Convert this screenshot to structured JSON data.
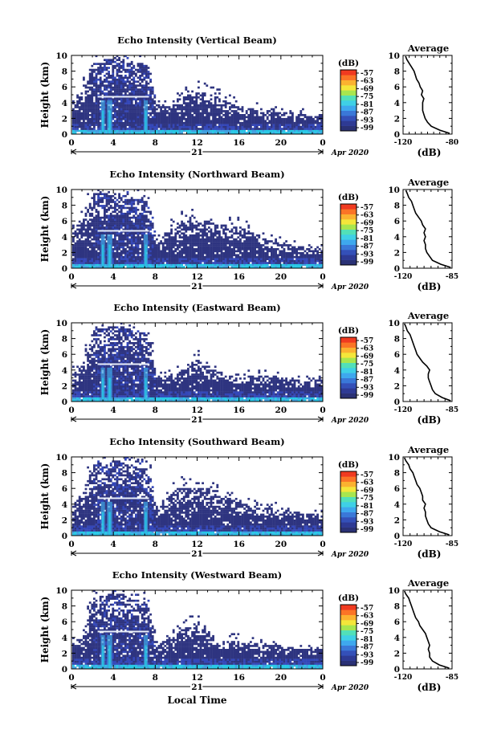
{
  "colors": {
    "background": "#ffffff",
    "echo_base": "#2e3480",
    "echo_mid": "#3346b8",
    "echo_strong": "#3fa0e0",
    "echo_surface": "#27c8e6",
    "profile_line": "#000000",
    "colorbar": [
      "#2a3175",
      "#2e3a94",
      "#3450b8",
      "#3a78d8",
      "#3ea8ee",
      "#3fd0e6",
      "#52e0b8",
      "#a8e64e",
      "#f4e63a",
      "#fbb230",
      "#fb7426",
      "#f03a20"
    ]
  },
  "labels": {
    "y_axis": "Height (km)",
    "x_axis": "Local Time",
    "colorbar_unit": "(dB)",
    "avg_title": "Average",
    "avg_unit": "(dB)",
    "date_day": "21",
    "date_month_year": "Apr 2020"
  },
  "chart_data": [
    {
      "type": "heatmap",
      "title": "Echo Intensity (Vertical Beam)",
      "xlabel": "",
      "ylabel": "Height (km)",
      "xlim": [
        0,
        24
      ],
      "ylim": [
        0,
        10
      ],
      "xticks": [
        "0",
        "4",
        "8",
        "12",
        "16",
        "20",
        "0"
      ],
      "yticks": [
        "0",
        "2",
        "4",
        "6",
        "8",
        "10"
      ],
      "colorbar": {
        "label": "(dB)",
        "ticks": [
          "-57",
          "-63",
          "-69",
          "-75",
          "-81",
          "-87",
          "-93",
          "-99"
        ]
      },
      "echo_tops_km": [
        [
          0.2,
          4.2
        ],
        [
          1.0,
          5.5
        ],
        [
          2.0,
          9.2
        ],
        [
          3.0,
          9.4
        ],
        [
          4.0,
          9.5
        ],
        [
          5.0,
          9.4
        ],
        [
          6.0,
          9.0
        ],
        [
          7.0,
          8.8
        ],
        [
          7.5,
          7.5
        ],
        [
          8.0,
          3.2
        ],
        [
          10.0,
          4.3
        ],
        [
          12.0,
          5.3
        ],
        [
          14.0,
          4.5
        ],
        [
          16.0,
          3.4
        ],
        [
          18.0,
          3.0
        ],
        [
          20.0,
          2.7
        ],
        [
          22.0,
          2.5
        ],
        [
          23.9,
          2.4
        ]
      ],
      "average_profile": {
        "title": "Average",
        "xlabel": "(dB)",
        "xlim": [
          -120,
          -80
        ],
        "xticks": [
          "-120",
          "-80"
        ],
        "ylim": [
          0,
          10
        ],
        "yticks": [
          "0",
          "2",
          "4",
          "6",
          "8",
          "10"
        ],
        "height_km": [
          0.1,
          0.5,
          1.0,
          1.5,
          2.0,
          2.5,
          3.0,
          3.5,
          4.0,
          4.5,
          5.0,
          5.5,
          6.0,
          6.5,
          7.0,
          7.5,
          8.0,
          8.5,
          9.0,
          9.5,
          9.9
        ],
        "db": [
          -82,
          -90,
          -97,
          -100,
          -102,
          -103,
          -104,
          -104,
          -104,
          -103,
          -105,
          -104,
          -106,
          -107,
          -109,
          -110,
          -111,
          -113,
          -115,
          -117,
          -118
        ]
      }
    },
    {
      "type": "heatmap",
      "title": "Echo Intensity (Northward Beam)",
      "xlabel": "",
      "ylabel": "Height (km)",
      "xlim": [
        0,
        24
      ],
      "ylim": [
        0,
        10
      ],
      "xticks": [
        "0",
        "4",
        "8",
        "12",
        "16",
        "20",
        "0"
      ],
      "yticks": [
        "0",
        "2",
        "4",
        "6",
        "8",
        "10"
      ],
      "colorbar": {
        "label": "(dB)",
        "ticks": [
          "-57",
          "-63",
          "-69",
          "-75",
          "-81",
          "-87",
          "-93",
          "-99"
        ]
      },
      "echo_tops_km": [
        [
          0.2,
          4.5
        ],
        [
          1.0,
          6.0
        ],
        [
          2.0,
          9.3
        ],
        [
          3.0,
          9.5
        ],
        [
          4.0,
          9.5
        ],
        [
          5.0,
          9.3
        ],
        [
          6.0,
          9.0
        ],
        [
          7.0,
          8.6
        ],
        [
          7.5,
          7.0
        ],
        [
          8.0,
          3.0
        ],
        [
          10.0,
          5.7
        ],
        [
          12.0,
          6.0
        ],
        [
          14.0,
          5.5
        ],
        [
          16.0,
          5.0
        ],
        [
          18.0,
          4.0
        ],
        [
          20.0,
          3.0
        ],
        [
          22.0,
          2.6
        ],
        [
          23.9,
          2.5
        ]
      ],
      "average_profile": {
        "title": "Average",
        "xlabel": "(dB)",
        "xlim": [
          -120,
          -85
        ],
        "xticks": [
          "-120",
          "-85"
        ],
        "ylim": [
          0,
          10
        ],
        "yticks": [
          "0",
          "2",
          "4",
          "6",
          "8",
          "10"
        ],
        "height_km": [
          0.1,
          0.5,
          1.0,
          1.5,
          2.0,
          2.5,
          3.0,
          3.5,
          4.0,
          4.5,
          5.0,
          5.5,
          6.0,
          6.5,
          7.0,
          7.5,
          8.0,
          8.5,
          9.0,
          9.5,
          9.9
        ],
        "db": [
          -86,
          -93,
          -99,
          -101,
          -103,
          -104,
          -104,
          -105,
          -104,
          -105,
          -104,
          -106,
          -107,
          -109,
          -111,
          -112,
          -113,
          -114,
          -116,
          -117,
          -118
        ]
      }
    },
    {
      "type": "heatmap",
      "title": "Echo Intensity (Eastward Beam)",
      "xlabel": "",
      "ylabel": "Height (km)",
      "xlim": [
        0,
        24
      ],
      "ylim": [
        0,
        10
      ],
      "xticks": [
        "0",
        "4",
        "8",
        "12",
        "16",
        "20",
        "0"
      ],
      "yticks": [
        "0",
        "2",
        "4",
        "6",
        "8",
        "10"
      ],
      "colorbar": {
        "label": "(dB)",
        "ticks": [
          "-57",
          "-63",
          "-69",
          "-75",
          "-81",
          "-87",
          "-93",
          "-99"
        ]
      },
      "echo_tops_km": [
        [
          0.2,
          3.5
        ],
        [
          1.0,
          4.5
        ],
        [
          2.0,
          9.0
        ],
        [
          3.0,
          9.3
        ],
        [
          4.0,
          9.5
        ],
        [
          5.0,
          9.3
        ],
        [
          6.0,
          8.8
        ],
        [
          7.0,
          8.5
        ],
        [
          7.5,
          7.2
        ],
        [
          8.0,
          2.8
        ],
        [
          10.0,
          3.5
        ],
        [
          12.0,
          5.2
        ],
        [
          14.0,
          3.5
        ],
        [
          16.0,
          3.0
        ],
        [
          18.0,
          3.2
        ],
        [
          20.0,
          3.0
        ],
        [
          22.0,
          2.5
        ],
        [
          23.9,
          2.6
        ]
      ],
      "average_profile": {
        "title": "Average",
        "xlabel": "(dB)",
        "xlim": [
          -120,
          -85
        ],
        "xticks": [
          "-120",
          "-85"
        ],
        "ylim": [
          0,
          10
        ],
        "yticks": [
          "0",
          "2",
          "4",
          "6",
          "8",
          "10"
        ],
        "height_km": [
          0.1,
          0.5,
          1.0,
          1.5,
          2.0,
          2.5,
          3.0,
          3.5,
          4.0,
          4.5,
          5.0,
          5.5,
          6.0,
          6.5,
          7.0,
          7.5,
          8.0,
          8.5,
          9.0,
          9.5,
          9.9
        ],
        "db": [
          -86,
          -92,
          -97,
          -99,
          -100,
          -101,
          -102,
          -102,
          -101,
          -103,
          -106,
          -108,
          -110,
          -111,
          -112,
          -113,
          -114,
          -115,
          -117,
          -118,
          -119
        ]
      }
    },
    {
      "type": "heatmap",
      "title": "Echo Intensity (Southward Beam)",
      "xlabel": "",
      "ylabel": "Height (km)",
      "xlim": [
        0,
        24
      ],
      "ylim": [
        0,
        10
      ],
      "xticks": [
        "0",
        "4",
        "8",
        "12",
        "16",
        "20",
        "0"
      ],
      "yticks": [
        "0",
        "2",
        "4",
        "6",
        "8",
        "10"
      ],
      "colorbar": {
        "label": "(dB)",
        "ticks": [
          "-57",
          "-63",
          "-69",
          "-75",
          "-81",
          "-87",
          "-93",
          "-99"
        ]
      },
      "echo_tops_km": [
        [
          0.2,
          4.0
        ],
        [
          1.0,
          5.5
        ],
        [
          2.0,
          8.8
        ],
        [
          3.0,
          9.0
        ],
        [
          4.0,
          9.4
        ],
        [
          5.0,
          9.2
        ],
        [
          6.0,
          8.6
        ],
        [
          7.0,
          8.3
        ],
        [
          7.5,
          7.0
        ],
        [
          8.0,
          3.0
        ],
        [
          10.0,
          6.0
        ],
        [
          12.0,
          6.0
        ],
        [
          14.0,
          5.0
        ],
        [
          16.0,
          4.0
        ],
        [
          18.0,
          3.5
        ],
        [
          20.0,
          3.2
        ],
        [
          22.0,
          2.8
        ],
        [
          23.9,
          2.5
        ]
      ],
      "average_profile": {
        "title": "Average",
        "xlabel": "(dB)",
        "xlim": [
          -120,
          -85
        ],
        "xticks": [
          "-120",
          "-85"
        ],
        "ylim": [
          0,
          10
        ],
        "yticks": [
          "0",
          "2",
          "4",
          "6",
          "8",
          "10"
        ],
        "height_km": [
          0.1,
          0.5,
          1.0,
          1.5,
          2.0,
          2.5,
          3.0,
          3.5,
          4.0,
          4.5,
          5.0,
          5.5,
          6.0,
          6.5,
          7.0,
          7.5,
          8.0,
          8.5,
          9.0,
          9.5,
          9.9
        ],
        "db": [
          -87,
          -94,
          -100,
          -102,
          -103,
          -104,
          -104,
          -105,
          -104,
          -106,
          -106,
          -107,
          -108,
          -110,
          -111,
          -112,
          -113,
          -115,
          -116,
          -118,
          -119
        ]
      }
    },
    {
      "type": "heatmap",
      "title": "Echo Intensity (Westward Beam)",
      "xlabel": "Local Time",
      "ylabel": "Height (km)",
      "xlim": [
        0,
        24
      ],
      "ylim": [
        0,
        10
      ],
      "xticks": [
        "0",
        "4",
        "8",
        "12",
        "16",
        "20",
        "0"
      ],
      "yticks": [
        "0",
        "2",
        "4",
        "6",
        "8",
        "10"
      ],
      "colorbar": {
        "label": "(dB)",
        "ticks": [
          "-57",
          "-63",
          "-69",
          "-75",
          "-81",
          "-87",
          "-93",
          "-99"
        ]
      },
      "echo_tops_km": [
        [
          0.2,
          3.2
        ],
        [
          1.0,
          4.0
        ],
        [
          2.0,
          8.8
        ],
        [
          3.0,
          9.2
        ],
        [
          4.0,
          9.5
        ],
        [
          5.0,
          9.2
        ],
        [
          6.0,
          8.7
        ],
        [
          7.0,
          8.4
        ],
        [
          7.5,
          7.0
        ],
        [
          8.0,
          2.8
        ],
        [
          10.0,
          4.5
        ],
        [
          12.0,
          6.0
        ],
        [
          14.0,
          3.5
        ],
        [
          16.0,
          3.5
        ],
        [
          18.0,
          3.0
        ],
        [
          20.0,
          2.8
        ],
        [
          22.0,
          2.5
        ],
        [
          23.9,
          2.4
        ]
      ],
      "average_profile": {
        "title": "Average",
        "xlabel": "(dB)",
        "xlim": [
          -120,
          -85
        ],
        "xticks": [
          "-120",
          "-85"
        ],
        "ylim": [
          0,
          10
        ],
        "yticks": [
          "0",
          "2",
          "4",
          "6",
          "8",
          "10"
        ],
        "height_km": [
          0.1,
          0.5,
          1.0,
          1.5,
          2.0,
          2.5,
          3.0,
          3.5,
          4.0,
          4.5,
          5.0,
          5.5,
          6.0,
          6.5,
          7.0,
          7.5,
          8.0,
          8.5,
          9.0,
          9.5,
          9.9
        ],
        "db": [
          -87,
          -94,
          -99,
          -101,
          -101,
          -102,
          -101,
          -102,
          -103,
          -104,
          -106,
          -108,
          -109,
          -111,
          -112,
          -113,
          -114,
          -115,
          -116,
          -118,
          -119
        ]
      }
    }
  ]
}
